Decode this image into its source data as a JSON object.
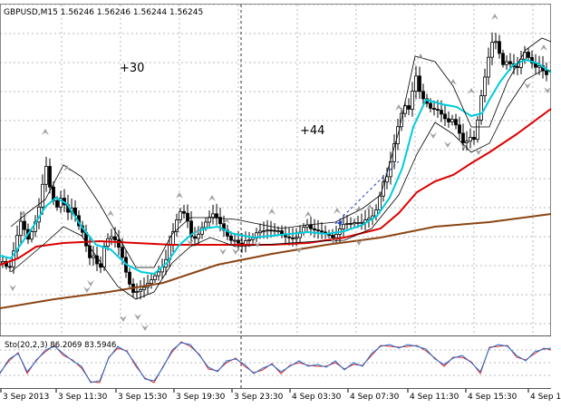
{
  "symbol_info": "GBPUSD,M15  1.56246 1.56246 1.56244 1.56245",
  "annotations": [
    "+30",
    "+44"
  ],
  "sto_info": "Sto(20,2,3) 86.2069 83.5946",
  "time_axis": [
    "3 Sep 2013",
    "3 Sep 11:30",
    "3 Sep 15:30",
    "3 Sep 19:30",
    "3 Sep 23:30",
    "4 Sep 03:30",
    "4 Sep 07:30",
    "4 Sep 11:30",
    "4 Sep 15:30",
    "4 Sep 1"
  ],
  "colors": {
    "background": "#ffffff",
    "candles": "#000000",
    "fast_ma": "#00ccdd",
    "mid_ma": "#dd0000",
    "slow_ma": "#8b4513",
    "envelope": "#000000",
    "stoch_main": "#1f6fd6",
    "stoch_signal": "#dd2222",
    "grid": "#b8b8b8",
    "arrows": "#a0a0a0"
  },
  "chart_data": {
    "type": "line",
    "subtype": "candlestick-with-moving-averages",
    "symbol": "GBPUSD",
    "timeframe": "M15",
    "quote": {
      "open": 1.56246,
      "high": 1.56246,
      "low": 1.56244,
      "close": 1.56245
    },
    "x": [
      "3 Sep 2013",
      "3 Sep 11:30",
      "3 Sep 15:30",
      "3 Sep 19:30",
      "3 Sep 23:30",
      "4 Sep 03:30",
      "4 Sep 07:30",
      "4 Sep 11:30",
      "4 Sep 15:30",
      "4 Sep 1"
    ],
    "series": [
      {
        "name": "Sto(20,2,3) main",
        "last_value": 86.2069
      },
      {
        "name": "Sto(20,2,3) signal",
        "last_value": 83.5946
      }
    ],
    "annotations": [
      "+30",
      "+44"
    ],
    "grid": true
  }
}
